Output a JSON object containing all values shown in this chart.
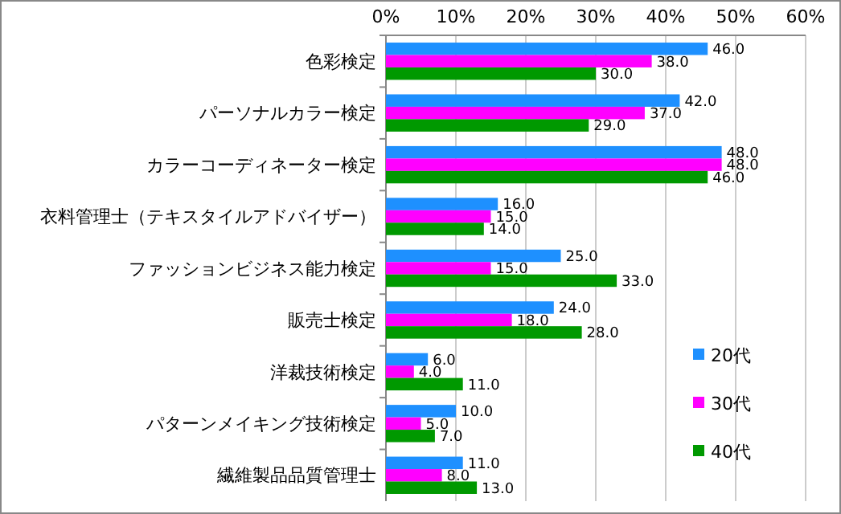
{
  "chart_data": {
    "type": "bar",
    "orientation": "horizontal",
    "categories": [
      "色彩検定",
      "パーソナルカラー検定",
      "カラーコーディネーター検定",
      "衣料管理士（テキスタイルアドバイザー）",
      "ファッションビジネス能力検定",
      "販売士検定",
      "洋裁技術検定",
      "パターンメイキング技術検定",
      "繊維製品品質管理士"
    ],
    "series": [
      {
        "name": "20代",
        "color": "#1e90ff",
        "values": [
          46,
          42,
          48,
          16,
          25,
          24,
          6,
          10,
          11
        ],
        "value_labels": [
          "46.0",
          "42.0",
          "48.0",
          "16.0",
          "25.0",
          "24.0",
          "6.0",
          "10.0",
          "11.0"
        ]
      },
      {
        "name": "30代",
        "color": "#ff00ff",
        "values": [
          38,
          37,
          48,
          15,
          15,
          18,
          4,
          5,
          8
        ],
        "value_labels": [
          "38.0",
          "37.0",
          "48.0",
          "15.0",
          "15.0",
          "18.0",
          "4.0",
          "5.0",
          "8.0"
        ]
      },
      {
        "name": "40代",
        "color": "#009900",
        "values": [
          30,
          29,
          46,
          14,
          33,
          28,
          11,
          7,
          13
        ],
        "value_labels": [
          "30.0",
          "29.0",
          "46.0",
          "14.0",
          "33.0",
          "28.0",
          "11.0",
          "7.0",
          "13.0"
        ]
      }
    ],
    "xlim": [
      0,
      60
    ],
    "xticks": [
      {
        "value": 0,
        "label": "0%"
      },
      {
        "value": 10,
        "label": "10%"
      },
      {
        "value": 20,
        "label": "20%"
      },
      {
        "value": 30,
        "label": "30%"
      },
      {
        "value": 40,
        "label": "40%"
      },
      {
        "value": 50,
        "label": "50%"
      },
      {
        "value": 60,
        "label": "60%"
      }
    ],
    "grid": "x",
    "legend": "bottom right"
  }
}
